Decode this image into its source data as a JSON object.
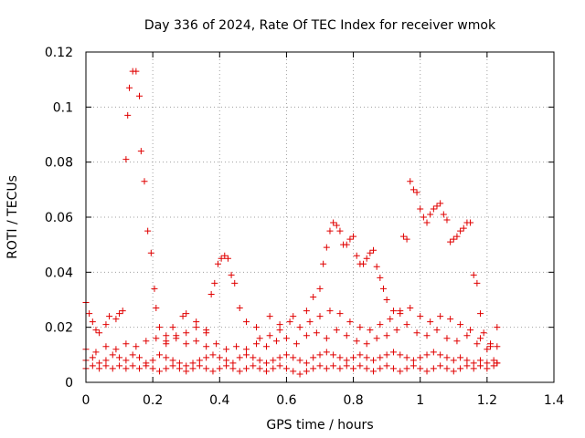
{
  "chart_data": {
    "type": "scatter",
    "title": "Day 336 of 2024, Rate Of TEC Index for receiver wmok",
    "xlabel": "GPS time / hours",
    "ylabel": "ROTI / TECUs",
    "xlim": [
      0,
      1.4
    ],
    "ylim": [
      0,
      0.12
    ],
    "xticks": [
      "0",
      "0.2",
      "0.4",
      "0.6",
      "0.8",
      "1",
      "1.2",
      "1.4"
    ],
    "yticks": [
      "0",
      "0.02",
      "0.04",
      "0.06",
      "0.08",
      "0.1",
      "0.12"
    ],
    "grid": true,
    "legend": "none",
    "marker": "plus",
    "color": "#e00000",
    "series": [
      {
        "values": [
          [
            0.0,
            0.029
          ],
          [
            0.01,
            0.025
          ],
          [
            0.02,
            0.022
          ],
          [
            0.03,
            0.019
          ],
          [
            0.04,
            0.018
          ],
          [
            0.06,
            0.021
          ],
          [
            0.07,
            0.024
          ],
          [
            0.09,
            0.023
          ],
          [
            0.1,
            0.025
          ],
          [
            0.11,
            0.026
          ],
          [
            0.12,
            0.081
          ],
          [
            0.125,
            0.097
          ],
          [
            0.13,
            0.107
          ],
          [
            0.14,
            0.113
          ],
          [
            0.15,
            0.113
          ],
          [
            0.16,
            0.104
          ],
          [
            0.165,
            0.084
          ],
          [
            0.175,
            0.073
          ],
          [
            0.185,
            0.055
          ],
          [
            0.195,
            0.047
          ],
          [
            0.205,
            0.034
          ],
          [
            0.21,
            0.027
          ],
          [
            0.22,
            0.02
          ],
          [
            0.24,
            0.017
          ],
          [
            0.26,
            0.02
          ],
          [
            0.29,
            0.024
          ],
          [
            0.3,
            0.025
          ],
          [
            0.33,
            0.022
          ],
          [
            0.36,
            0.019
          ],
          [
            0.375,
            0.032
          ],
          [
            0.385,
            0.036
          ],
          [
            0.395,
            0.043
          ],
          [
            0.405,
            0.045
          ],
          [
            0.415,
            0.046
          ],
          [
            0.425,
            0.045
          ],
          [
            0.435,
            0.039
          ],
          [
            0.445,
            0.036
          ],
          [
            0.46,
            0.027
          ],
          [
            0.48,
            0.022
          ],
          [
            0.51,
            0.02
          ],
          [
            0.55,
            0.024
          ],
          [
            0.58,
            0.021
          ],
          [
            0.62,
            0.024
          ],
          [
            0.66,
            0.026
          ],
          [
            0.68,
            0.031
          ],
          [
            0.7,
            0.034
          ],
          [
            0.71,
            0.043
          ],
          [
            0.72,
            0.049
          ],
          [
            0.73,
            0.055
          ],
          [
            0.74,
            0.058
          ],
          [
            0.75,
            0.057
          ],
          [
            0.76,
            0.055
          ],
          [
            0.77,
            0.05
          ],
          [
            0.78,
            0.05
          ],
          [
            0.79,
            0.052
          ],
          [
            0.8,
            0.053
          ],
          [
            0.81,
            0.046
          ],
          [
            0.82,
            0.043
          ],
          [
            0.83,
            0.043
          ],
          [
            0.84,
            0.045
          ],
          [
            0.85,
            0.047
          ],
          [
            0.86,
            0.048
          ],
          [
            0.87,
            0.042
          ],
          [
            0.88,
            0.038
          ],
          [
            0.89,
            0.034
          ],
          [
            0.9,
            0.03
          ],
          [
            0.92,
            0.026
          ],
          [
            0.94,
            0.025
          ],
          [
            0.95,
            0.053
          ],
          [
            0.96,
            0.052
          ],
          [
            0.97,
            0.073
          ],
          [
            0.98,
            0.07
          ],
          [
            0.99,
            0.069
          ],
          [
            1.0,
            0.063
          ],
          [
            1.01,
            0.06
          ],
          [
            1.02,
            0.058
          ],
          [
            1.03,
            0.061
          ],
          [
            1.04,
            0.063
          ],
          [
            1.05,
            0.064
          ],
          [
            1.06,
            0.065
          ],
          [
            1.07,
            0.061
          ],
          [
            1.08,
            0.059
          ],
          [
            1.09,
            0.051
          ],
          [
            1.1,
            0.052
          ],
          [
            1.11,
            0.053
          ],
          [
            1.12,
            0.055
          ],
          [
            1.13,
            0.056
          ],
          [
            1.14,
            0.058
          ],
          [
            1.15,
            0.058
          ],
          [
            1.16,
            0.039
          ],
          [
            1.17,
            0.036
          ],
          [
            1.18,
            0.025
          ],
          [
            1.19,
            0.018
          ],
          [
            1.21,
            0.014
          ],
          [
            1.23,
            0.02
          ]
        ]
      },
      {
        "values": [
          [
            0.0,
            0.012
          ],
          [
            0.03,
            0.011
          ],
          [
            0.06,
            0.013
          ],
          [
            0.09,
            0.012
          ],
          [
            0.12,
            0.014
          ],
          [
            0.15,
            0.013
          ],
          [
            0.18,
            0.015
          ],
          [
            0.21,
            0.016
          ],
          [
            0.24,
            0.015
          ],
          [
            0.27,
            0.017
          ],
          [
            0.3,
            0.014
          ],
          [
            0.33,
            0.015
          ],
          [
            0.36,
            0.013
          ],
          [
            0.39,
            0.014
          ],
          [
            0.42,
            0.012
          ],
          [
            0.45,
            0.013
          ],
          [
            0.48,
            0.012
          ],
          [
            0.51,
            0.014
          ],
          [
            0.54,
            0.013
          ],
          [
            0.57,
            0.015
          ],
          [
            0.6,
            0.016
          ],
          [
            0.63,
            0.014
          ],
          [
            0.66,
            0.017
          ],
          [
            0.69,
            0.018
          ],
          [
            0.72,
            0.016
          ],
          [
            0.75,
            0.019
          ],
          [
            0.78,
            0.017
          ],
          [
            0.81,
            0.015
          ],
          [
            0.84,
            0.014
          ],
          [
            0.87,
            0.016
          ],
          [
            0.9,
            0.017
          ],
          [
            0.93,
            0.019
          ],
          [
            0.96,
            0.021
          ],
          [
            0.99,
            0.018
          ],
          [
            1.02,
            0.017
          ],
          [
            1.05,
            0.019
          ],
          [
            1.08,
            0.016
          ],
          [
            1.11,
            0.015
          ],
          [
            1.14,
            0.017
          ],
          [
            1.17,
            0.014
          ],
          [
            1.2,
            0.012
          ],
          [
            1.23,
            0.013
          ]
        ]
      },
      {
        "values": [
          [
            0.0,
            0.008
          ],
          [
            0.02,
            0.009
          ],
          [
            0.04,
            0.007
          ],
          [
            0.06,
            0.008
          ],
          [
            0.08,
            0.01
          ],
          [
            0.1,
            0.009
          ],
          [
            0.12,
            0.008
          ],
          [
            0.14,
            0.01
          ],
          [
            0.16,
            0.009
          ],
          [
            0.18,
            0.007
          ],
          [
            0.2,
            0.008
          ],
          [
            0.22,
            0.01
          ],
          [
            0.24,
            0.009
          ],
          [
            0.26,
            0.008
          ],
          [
            0.28,
            0.007
          ],
          [
            0.3,
            0.006
          ],
          [
            0.32,
            0.007
          ],
          [
            0.34,
            0.008
          ],
          [
            0.36,
            0.009
          ],
          [
            0.38,
            0.01
          ],
          [
            0.4,
            0.009
          ],
          [
            0.42,
            0.008
          ],
          [
            0.44,
            0.007
          ],
          [
            0.46,
            0.009
          ],
          [
            0.48,
            0.01
          ],
          [
            0.5,
            0.009
          ],
          [
            0.52,
            0.008
          ],
          [
            0.54,
            0.007
          ],
          [
            0.56,
            0.008
          ],
          [
            0.58,
            0.009
          ],
          [
            0.6,
            0.01
          ],
          [
            0.62,
            0.009
          ],
          [
            0.64,
            0.008
          ],
          [
            0.66,
            0.007
          ],
          [
            0.68,
            0.009
          ],
          [
            0.7,
            0.01
          ],
          [
            0.72,
            0.011
          ],
          [
            0.74,
            0.01
          ],
          [
            0.76,
            0.009
          ],
          [
            0.78,
            0.008
          ],
          [
            0.8,
            0.009
          ],
          [
            0.82,
            0.01
          ],
          [
            0.84,
            0.009
          ],
          [
            0.86,
            0.008
          ],
          [
            0.88,
            0.009
          ],
          [
            0.9,
            0.01
          ],
          [
            0.92,
            0.011
          ],
          [
            0.94,
            0.01
          ],
          [
            0.96,
            0.009
          ],
          [
            0.98,
            0.008
          ],
          [
            1.0,
            0.009
          ],
          [
            1.02,
            0.01
          ],
          [
            1.04,
            0.011
          ],
          [
            1.06,
            0.01
          ],
          [
            1.08,
            0.009
          ],
          [
            1.1,
            0.008
          ],
          [
            1.12,
            0.009
          ],
          [
            1.14,
            0.008
          ],
          [
            1.16,
            0.007
          ],
          [
            1.18,
            0.008
          ],
          [
            1.2,
            0.007
          ],
          [
            1.22,
            0.008
          ],
          [
            1.23,
            0.007
          ]
        ]
      },
      {
        "values": [
          [
            0.0,
            0.005
          ],
          [
            0.02,
            0.006
          ],
          [
            0.04,
            0.005
          ],
          [
            0.06,
            0.006
          ],
          [
            0.08,
            0.005
          ],
          [
            0.1,
            0.006
          ],
          [
            0.12,
            0.005
          ],
          [
            0.14,
            0.006
          ],
          [
            0.16,
            0.005
          ],
          [
            0.18,
            0.006
          ],
          [
            0.2,
            0.005
          ],
          [
            0.22,
            0.004
          ],
          [
            0.24,
            0.005
          ],
          [
            0.26,
            0.006
          ],
          [
            0.28,
            0.005
          ],
          [
            0.3,
            0.004
          ],
          [
            0.32,
            0.005
          ],
          [
            0.34,
            0.006
          ],
          [
            0.36,
            0.005
          ],
          [
            0.38,
            0.004
          ],
          [
            0.4,
            0.005
          ],
          [
            0.42,
            0.006
          ],
          [
            0.44,
            0.005
          ],
          [
            0.46,
            0.004
          ],
          [
            0.48,
            0.005
          ],
          [
            0.5,
            0.006
          ],
          [
            0.52,
            0.005
          ],
          [
            0.54,
            0.004
          ],
          [
            0.56,
            0.005
          ],
          [
            0.58,
            0.006
          ],
          [
            0.6,
            0.005
          ],
          [
            0.62,
            0.004
          ],
          [
            0.64,
            0.003
          ],
          [
            0.66,
            0.004
          ],
          [
            0.68,
            0.005
          ],
          [
            0.7,
            0.006
          ],
          [
            0.72,
            0.005
          ],
          [
            0.74,
            0.006
          ],
          [
            0.76,
            0.005
          ],
          [
            0.78,
            0.006
          ],
          [
            0.8,
            0.005
          ],
          [
            0.82,
            0.006
          ],
          [
            0.84,
            0.005
          ],
          [
            0.86,
            0.004
          ],
          [
            0.88,
            0.005
          ],
          [
            0.9,
            0.006
          ],
          [
            0.92,
            0.005
          ],
          [
            0.94,
            0.004
          ],
          [
            0.96,
            0.005
          ],
          [
            0.98,
            0.006
          ],
          [
            1.0,
            0.005
          ],
          [
            1.02,
            0.004
          ],
          [
            1.04,
            0.005
          ],
          [
            1.06,
            0.006
          ],
          [
            1.08,
            0.005
          ],
          [
            1.1,
            0.004
          ],
          [
            1.12,
            0.005
          ],
          [
            1.14,
            0.006
          ],
          [
            1.16,
            0.005
          ],
          [
            1.18,
            0.006
          ],
          [
            1.2,
            0.005
          ],
          [
            1.22,
            0.006
          ],
          [
            1.23,
            0.007
          ]
        ]
      },
      {
        "values": [
          [
            0.24,
            0.014
          ],
          [
            0.27,
            0.016
          ],
          [
            0.3,
            0.018
          ],
          [
            0.33,
            0.02
          ],
          [
            0.36,
            0.018
          ],
          [
            0.52,
            0.016
          ],
          [
            0.55,
            0.017
          ],
          [
            0.58,
            0.019
          ],
          [
            0.61,
            0.022
          ],
          [
            0.64,
            0.02
          ],
          [
            0.67,
            0.022
          ],
          [
            0.7,
            0.024
          ],
          [
            0.73,
            0.026
          ],
          [
            0.76,
            0.025
          ],
          [
            0.79,
            0.022
          ],
          [
            0.82,
            0.02
          ],
          [
            0.85,
            0.019
          ],
          [
            0.88,
            0.021
          ],
          [
            0.91,
            0.023
          ],
          [
            0.94,
            0.026
          ],
          [
            0.97,
            0.027
          ],
          [
            1.0,
            0.024
          ],
          [
            1.03,
            0.022
          ],
          [
            1.06,
            0.024
          ],
          [
            1.09,
            0.023
          ],
          [
            1.12,
            0.021
          ],
          [
            1.15,
            0.019
          ],
          [
            1.18,
            0.016
          ],
          [
            1.21,
            0.013
          ]
        ]
      }
    ]
  }
}
